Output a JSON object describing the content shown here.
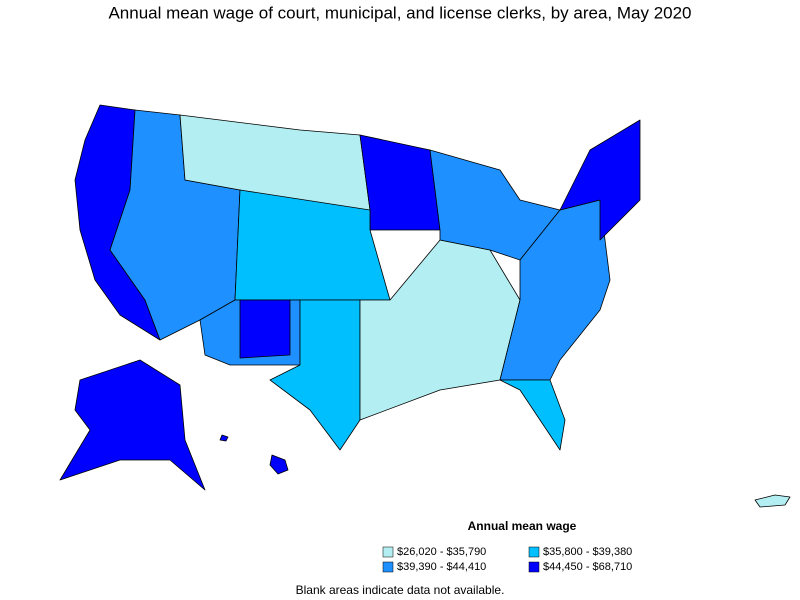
{
  "title": "Annual mean wage of court, municipal, and license clerks, by area, May 2020",
  "legend": {
    "title": "Annual mean wage",
    "items": [
      {
        "label": "$26,020 - $35,790",
        "color": "#b2eef2"
      },
      {
        "label": "$35,800 - $39,380",
        "color": "#00bfff"
      },
      {
        "label": "$39,390 - $44,410",
        "color": "#1e90ff"
      },
      {
        "label": "$44,450 - $68,710",
        "color": "#0000ff"
      }
    ]
  },
  "note": "Blank areas indicate data not available."
}
